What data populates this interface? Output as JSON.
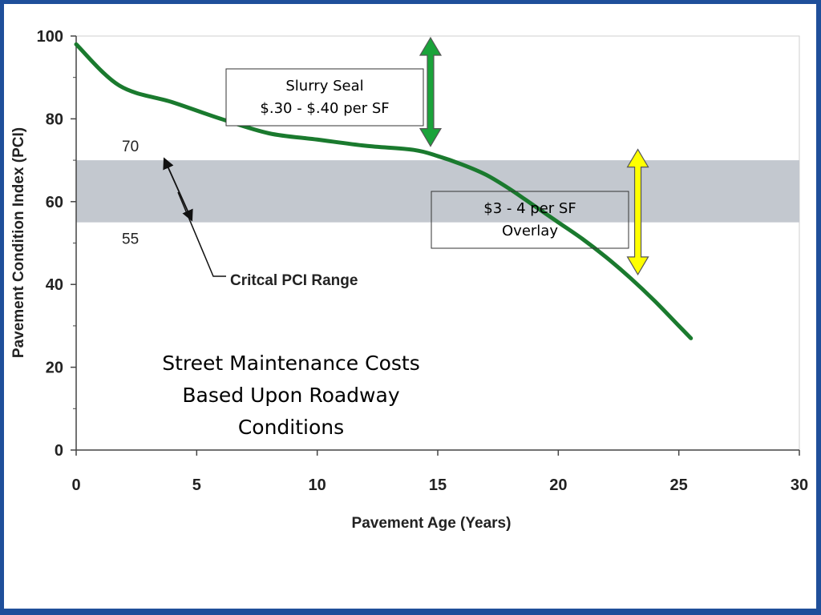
{
  "chart_data": {
    "type": "line",
    "xlabel": "Pavement Age (Years)",
    "ylabel": "Pavement Condition Index (PCI)",
    "xlim": [
      0,
      30
    ],
    "ylim": [
      0,
      100
    ],
    "x_ticks": [
      0,
      5,
      10,
      15,
      20,
      25,
      30
    ],
    "y_ticks": [
      0,
      20,
      40,
      60,
      80,
      100
    ],
    "x": [
      0,
      1.8,
      4,
      6,
      8,
      10,
      12,
      14,
      15,
      16,
      17,
      18,
      19,
      20,
      21,
      22,
      23,
      24,
      25,
      25.5
    ],
    "y": [
      98,
      88,
      84,
      80,
      76.5,
      75,
      73.5,
      72.5,
      71,
      69,
      66.5,
      63,
      59,
      55,
      51,
      46.5,
      41.5,
      36,
      30,
      27
    ],
    "line_color": "#1a7a2e",
    "critical_band": {
      "from": 55,
      "to": 70,
      "color": "#c3c8cf",
      "upper_label": "70",
      "lower_label": "55",
      "annotation": "Critcal PCI Range"
    },
    "callouts": [
      {
        "id": "slurry-seal",
        "lines": [
          "Slurry Seal",
          "$.30 - $.40 per SF"
        ],
        "arrow_color": "#1aa33a",
        "arrow_x": 14.7,
        "arrow_from": 100,
        "arrow_to": 73
      },
      {
        "id": "overlay",
        "lines": [
          "$3 - 4 per SF",
          "Overlay"
        ],
        "arrow_color": "#ffff00",
        "arrow_x": 23.3,
        "arrow_from": 73,
        "arrow_to": 42
      }
    ],
    "caption": [
      "Street Maintenance Costs",
      "Based Upon Roadway",
      "Conditions"
    ]
  }
}
